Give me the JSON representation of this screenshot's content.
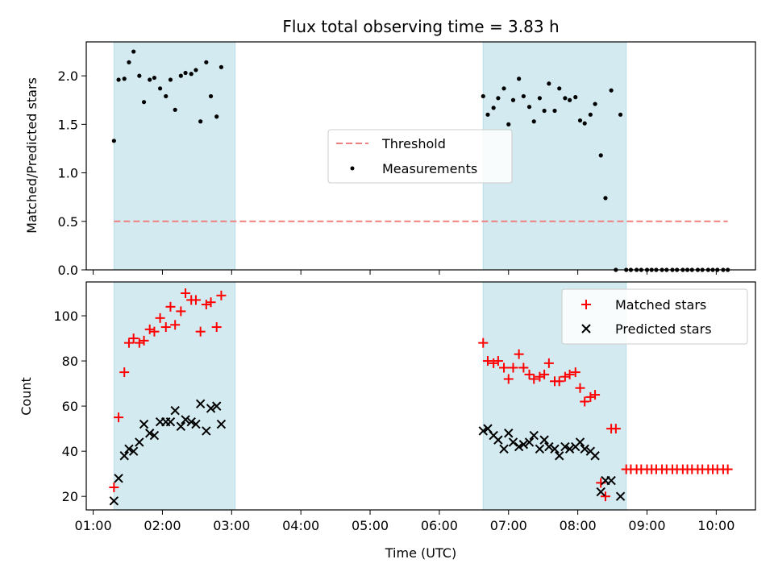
{
  "chart_data": [
    {
      "type": "scatter",
      "title": "Flux total observing time = 3.83 h",
      "ylabel": "Matched/Predicted stars",
      "ylim": [
        0,
        2.35
      ],
      "yticks": [
        "0.0",
        "0.5",
        "1.0",
        "1.5",
        "2.0"
      ],
      "xlim": [
        "00:54",
        "10:34"
      ],
      "shaded_spans": [
        [
          "01:18",
          "03:03"
        ],
        [
          "06:38",
          "08:42"
        ]
      ],
      "span_color": "#d3eaf0",
      "threshold": {
        "name": "Threshold",
        "value": 0.5,
        "x_range": [
          "01:18",
          "10:10"
        ],
        "color": "#f08080",
        "style": "dashed"
      },
      "series": [
        {
          "name": "Measurements",
          "marker": "dot",
          "color": "#000000",
          "x": [
            "01:18",
            "01:22",
            "01:27",
            "01:31",
            "01:35",
            "01:40",
            "01:44",
            "01:49",
            "01:53",
            "01:58",
            "02:03",
            "02:07",
            "02:11",
            "02:16",
            "02:20",
            "02:25",
            "02:29",
            "02:33",
            "02:38",
            "02:42",
            "02:47",
            "02:51",
            "02:55",
            "02:59",
            "03:04",
            "06:38",
            "06:42",
            "06:47",
            "06:51",
            "06:56",
            "07:00",
            "07:04",
            "07:09",
            "07:13",
            "07:18",
            "07:22",
            "07:27",
            "07:31",
            "07:35",
            "07:40",
            "07:44",
            "07:49",
            "07:53",
            "07:58",
            "08:02",
            "08:06",
            "08:11",
            "08:15",
            "08:20",
            "08:24",
            "08:29",
            "08:33",
            "08:37",
            "08:42",
            "08:46",
            "08:51",
            "08:55",
            "09:00",
            "09:04",
            "09:08",
            "09:13",
            "09:17",
            "09:22",
            "09:26",
            "09:31",
            "09:35",
            "09:39",
            "09:44",
            "09:48",
            "09:53",
            "09:57",
            "10:01",
            "10:06",
            "10:10"
          ],
          "y": [
            1.33,
            1.96,
            1.97,
            2.14,
            2.25,
            2.0,
            1.73,
            1.96,
            1.98,
            1.87,
            1.79,
            1.96,
            1.65,
            2.0,
            2.03,
            2.02,
            2.06,
            1.53,
            2.14,
            1.79,
            1.58,
            2.09,
            null,
            null,
            null,
            1.79,
            1.6,
            1.67,
            1.77,
            1.87,
            1.5,
            1.75,
            1.97,
            1.79,
            1.68,
            1.53,
            1.77,
            1.64,
            1.92,
            1.64,
            1.87,
            1.77,
            1.75,
            1.78,
            1.54,
            1.51,
            1.6,
            1.71,
            1.18,
            0.74,
            1.85,
            0.0,
            1.6,
            0.0,
            0.0,
            0.0,
            0.0,
            0.0,
            0.0,
            0.0,
            0.0,
            0.0,
            0.0,
            0.0,
            0.0,
            0.0,
            0.0,
            0.0,
            0.0,
            0.0,
            0.0,
            0.0,
            0.0,
            0.0
          ]
        }
      ],
      "legend": {
        "placement": "center",
        "entries": [
          "Threshold",
          "Measurements"
        ]
      }
    },
    {
      "type": "scatter",
      "xlabel": "Time (UTC)",
      "ylabel": "Count",
      "ylim": [
        14,
        115
      ],
      "yticks": [
        "20",
        "40",
        "60",
        "80",
        "100"
      ],
      "xticks": [
        "01:00",
        "02:00",
        "03:00",
        "04:00",
        "05:00",
        "06:00",
        "07:00",
        "08:00",
        "09:00",
        "10:00"
      ],
      "series": [
        {
          "name": "Matched stars",
          "marker": "plus",
          "color": "#ff0000",
          "x": [
            "01:18",
            "01:22",
            "01:27",
            "01:31",
            "01:35",
            "01:40",
            "01:44",
            "01:49",
            "01:53",
            "01:58",
            "02:03",
            "02:07",
            "02:11",
            "02:16",
            "02:20",
            "02:25",
            "02:29",
            "02:33",
            "02:38",
            "02:42",
            "02:47",
            "02:51",
            "02:55",
            "02:59",
            "03:04",
            "06:38",
            "06:42",
            "06:47",
            "06:51",
            "06:56",
            "07:00",
            "07:04",
            "07:09",
            "07:13",
            "07:18",
            "07:22",
            "07:27",
            "07:31",
            "07:35",
            "07:40",
            "07:44",
            "07:49",
            "07:53",
            "07:58",
            "08:02",
            "08:06",
            "08:11",
            "08:15",
            "08:20",
            "08:24",
            "08:29",
            "08:33",
            "08:37",
            "08:42",
            "08:46",
            "08:51",
            "08:55",
            "09:00",
            "09:04",
            "09:08",
            "09:13",
            "09:17",
            "09:22",
            "09:26",
            "09:31",
            "09:35",
            "09:39",
            "09:44",
            "09:48",
            "09:53",
            "09:57",
            "10:01",
            "10:06",
            "10:10"
          ],
          "y": [
            24,
            55,
            75,
            88,
            90,
            88,
            89,
            94,
            93,
            99,
            95,
            104,
            96,
            102,
            110,
            107,
            107,
            93,
            105,
            106,
            95,
            109,
            null,
            null,
            null,
            88,
            80,
            79,
            80,
            77,
            72,
            77,
            83,
            77,
            74,
            72,
            73,
            74,
            79,
            71,
            71,
            73,
            74,
            75,
            68,
            62,
            64,
            65,
            26,
            20,
            50,
            50,
            null,
            32,
            32,
            32,
            32,
            32,
            32,
            32,
            32,
            32,
            32,
            32,
            32,
            32,
            32,
            32,
            32,
            32,
            32,
            32,
            32,
            32
          ]
        },
        {
          "name": "Predicted stars",
          "marker": "x",
          "color": "#000000",
          "x": [
            "01:18",
            "01:22",
            "01:27",
            "01:31",
            "01:35",
            "01:40",
            "01:44",
            "01:49",
            "01:53",
            "01:58",
            "02:03",
            "02:07",
            "02:11",
            "02:16",
            "02:20",
            "02:25",
            "02:29",
            "02:33",
            "02:38",
            "02:42",
            "02:47",
            "02:51",
            "02:55",
            "02:59",
            "03:04",
            "06:38",
            "06:42",
            "06:47",
            "06:51",
            "06:56",
            "07:00",
            "07:04",
            "07:09",
            "07:13",
            "07:18",
            "07:22",
            "07:27",
            "07:31",
            "07:35",
            "07:40",
            "07:44",
            "07:49",
            "07:53",
            "07:58",
            "08:02",
            "08:06",
            "08:11",
            "08:15",
            "08:20",
            "08:24",
            "08:29",
            "08:33",
            "08:37",
            "08:42",
            "08:46",
            "08:51"
          ],
          "y": [
            18,
            28,
            38,
            41,
            40,
            44,
            52,
            48,
            47,
            53,
            53,
            53,
            58,
            51,
            54,
            53,
            52,
            61,
            49,
            59,
            60,
            52,
            null,
            null,
            null,
            49,
            50,
            47,
            45,
            41,
            48,
            44,
            42,
            43,
            44,
            47,
            41,
            45,
            42,
            41,
            38,
            42,
            41,
            42,
            44,
            41,
            40,
            38,
            22,
            27,
            27,
            null,
            20,
            null,
            null,
            null
          ]
        }
      ],
      "legend": {
        "placement": "upper right",
        "entries": [
          "Matched stars",
          "Predicted stars"
        ]
      }
    }
  ]
}
